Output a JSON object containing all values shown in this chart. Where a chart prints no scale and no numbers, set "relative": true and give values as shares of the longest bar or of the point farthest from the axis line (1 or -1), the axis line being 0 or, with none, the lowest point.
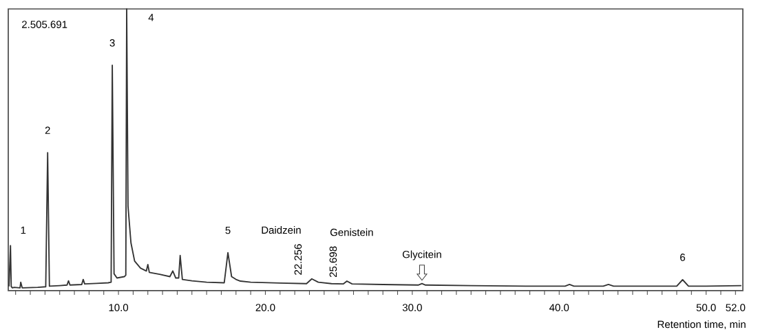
{
  "chart_data": {
    "type": "line",
    "relative": true,
    "xlabel": "Retention time, min",
    "xlim": [
      2.5,
      52.5
    ],
    "xticks": [
      {
        "value": 3,
        "label": null
      },
      {
        "value": 4,
        "label": null
      },
      {
        "value": 5,
        "label": null
      },
      {
        "value": 6,
        "label": null
      },
      {
        "value": 7,
        "label": null
      },
      {
        "value": 8,
        "label": null
      },
      {
        "value": 9,
        "label": null
      },
      {
        "value": 10,
        "label": "10.0"
      },
      {
        "value": 11,
        "label": null
      },
      {
        "value": 12,
        "label": null
      },
      {
        "value": 13,
        "label": null
      },
      {
        "value": 14,
        "label": null
      },
      {
        "value": 15,
        "label": null
      },
      {
        "value": 16,
        "label": null
      },
      {
        "value": 17,
        "label": null
      },
      {
        "value": 18,
        "label": null
      },
      {
        "value": 19,
        "label": null
      },
      {
        "value": 20,
        "label": "20.0"
      },
      {
        "value": 21,
        "label": null
      },
      {
        "value": 22,
        "label": null
      },
      {
        "value": 23,
        "label": null
      },
      {
        "value": 24,
        "label": null
      },
      {
        "value": 25,
        "label": null
      },
      {
        "value": 26,
        "label": null
      },
      {
        "value": 27,
        "label": null
      },
      {
        "value": 28,
        "label": null
      },
      {
        "value": 29,
        "label": null
      },
      {
        "value": 30,
        "label": "30.0"
      },
      {
        "value": 31,
        "label": null
      },
      {
        "value": 32,
        "label": null
      },
      {
        "value": 33,
        "label": null
      },
      {
        "value": 34,
        "label": null
      },
      {
        "value": 35,
        "label": null
      },
      {
        "value": 36,
        "label": null
      },
      {
        "value": 37,
        "label": null
      },
      {
        "value": 38,
        "label": null
      },
      {
        "value": 39,
        "label": null
      },
      {
        "value": 40,
        "label": "40.0"
      },
      {
        "value": 41,
        "label": null
      },
      {
        "value": 42,
        "label": null
      },
      {
        "value": 43,
        "label": null
      },
      {
        "value": 44,
        "label": null
      },
      {
        "value": 45,
        "label": null
      },
      {
        "value": 46,
        "label": null
      },
      {
        "value": 47,
        "label": null
      },
      {
        "value": 48,
        "label": null
      },
      {
        "value": 49,
        "label": null
      },
      {
        "value": 50,
        "label": "50.0"
      },
      {
        "value": 51,
        "label": null
      },
      {
        "value": 52,
        "label": "52.0"
      }
    ],
    "series": [
      {
        "color": "#333333",
        "x": [
          2.55,
          2.65,
          2.7,
          2.78,
          2.9,
          3.3,
          3.35,
          3.45,
          4.5,
          5.05,
          5.18,
          5.3,
          6,
          6.5,
          6.6,
          6.7,
          7.5,
          7.6,
          7.7,
          8.5,
          9.3,
          9.5,
          9.58,
          9.7,
          9.9,
          10.4,
          10.5,
          10.56,
          10.65,
          10.85,
          11.1,
          11.5,
          11.9,
          12.0,
          12.1,
          12.8,
          13.5,
          13.7,
          13.9,
          14.1,
          14.2,
          14.35,
          15,
          16,
          17.2,
          17.45,
          17.7,
          18.0,
          18.3,
          19,
          21,
          22.8,
          23.16,
          23.6,
          24.5,
          25.3,
          25.55,
          25.9,
          28,
          30.4,
          30.66,
          30.9,
          34,
          38,
          40.4,
          40.7,
          41,
          43,
          43.35,
          43.7,
          46,
          48.0,
          48.4,
          48.8,
          50,
          52.4
        ],
        "values": [
          0.015,
          0.16,
          0.015,
          0.01,
          0.012,
          0.01,
          0.03,
          0.01,
          0.012,
          0.014,
          0.49,
          0.016,
          0.018,
          0.02,
          0.035,
          0.02,
          0.022,
          0.04,
          0.024,
          0.026,
          0.028,
          0.03,
          0.8,
          0.06,
          0.045,
          0.05,
          0.055,
          1.0,
          0.3,
          0.17,
          0.105,
          0.08,
          0.07,
          0.093,
          0.065,
          0.058,
          0.05,
          0.07,
          0.045,
          0.045,
          0.125,
          0.04,
          0.035,
          0.03,
          0.028,
          0.135,
          0.05,
          0.04,
          0.034,
          0.03,
          0.027,
          0.025,
          0.042,
          0.03,
          0.025,
          0.024,
          0.034,
          0.024,
          0.022,
          0.02,
          0.025,
          0.02,
          0.018,
          0.016,
          0.016,
          0.022,
          0.016,
          0.016,
          0.022,
          0.016,
          0.016,
          0.016,
          0.039,
          0.016,
          0.016,
          0.018
        ]
      }
    ],
    "annotations": [
      "2.505.691",
      {
        "text": "1",
        "x": 2.7,
        "y": 0.16
      },
      {
        "text": "2",
        "x": 5.18,
        "y": 0.49
      },
      {
        "text": "3",
        "x": 9.58,
        "y": 0.8
      },
      {
        "text": "4",
        "x": 10.56,
        "y": 1.0
      },
      {
        "text": "5",
        "x": 17.45,
        "y": 0.135
      },
      {
        "text": "22.256",
        "x": 23.16,
        "y": 0.042
      },
      "Daidzein",
      {
        "text": "25.698",
        "x": 25.55,
        "y": 0.034
      },
      "Genistein",
      {
        "text": "Glycitein",
        "x": 30.66,
        "y": 0.025
      },
      {
        "text": "6",
        "x": 48.4,
        "y": 0.039
      }
    ]
  }
}
